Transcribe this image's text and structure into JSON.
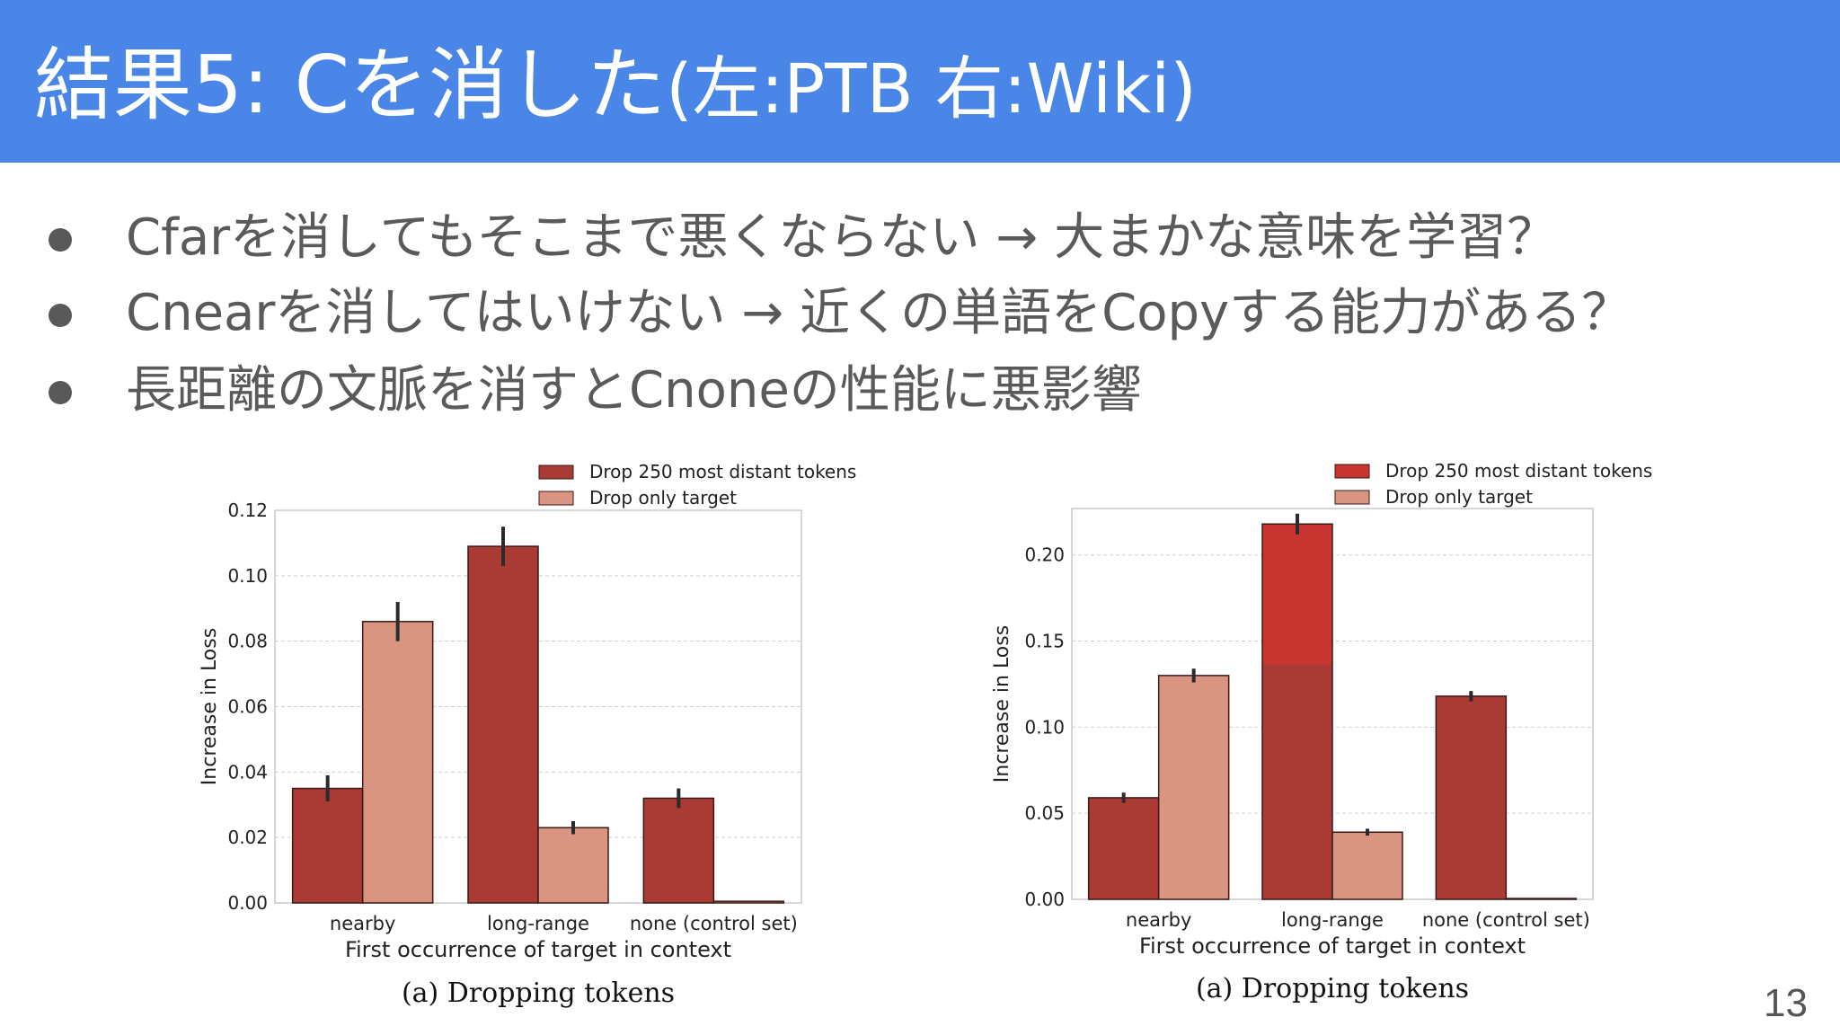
{
  "slide": {
    "title": "結果5: Cを消した",
    "title_sub": "(左:PTB   右:Wiki)",
    "page_number": "13",
    "colors": {
      "header": "#4a86e8",
      "bar_dark": "#a93a34",
      "bar_light": "#d99482",
      "bar_bright": "#c93530"
    }
  },
  "bullets": [
    {
      "text": "Cfarを消してもそこまで悪くならない → 大まかな意味を学習？"
    },
    {
      "text": "Cnearを消してはいけない → 近くの単語をCopyする能力がある？"
    },
    {
      "text": "長距離の文脈を消すとCnoneの性能に悪影響"
    }
  ],
  "chart_data": [
    {
      "type": "bar",
      "categories": [
        "nearby",
        "long-range",
        "none (control set)"
      ],
      "series": [
        {
          "name": "Drop 250 most distant tokens",
          "values": [
            0.035,
            0.109,
            0.032
          ],
          "errors": [
            0.004,
            0.006,
            0.003
          ]
        },
        {
          "name": "Drop only target",
          "values": [
            0.086,
            0.023,
            0.0005
          ],
          "errors": [
            0.006,
            0.002,
            0.0
          ]
        }
      ],
      "xlabel": "First occurrence of target in context",
      "ylabel": "Increase in Loss",
      "ylim": [
        0,
        0.12
      ],
      "yticks": [
        "0.00",
        "0.02",
        "0.04",
        "0.06",
        "0.08",
        "0.10",
        "0.12"
      ],
      "caption": "(a) Dropping tokens",
      "legend": "top-right",
      "grid": true
    },
    {
      "type": "bar",
      "categories": [
        "nearby",
        "long-range",
        "none (control set)"
      ],
      "series": [
        {
          "name": "Drop 250 most distant tokens",
          "values": [
            0.059,
            0.218,
            0.118
          ],
          "errors": [
            0.003,
            0.006,
            0.003
          ]
        },
        {
          "name": "Drop only target",
          "values": [
            0.13,
            0.039,
            0.0005
          ],
          "errors": [
            0.004,
            0.002,
            0.0
          ]
        }
      ],
      "xlabel": "First occurrence of target in context",
      "ylabel": "Increase in Loss",
      "ylim": [
        0,
        0.227
      ],
      "yticks": [
        "0.00",
        "0.05",
        "0.10",
        "0.15",
        "0.20"
      ],
      "caption": "(a) Dropping tokens",
      "legend": "top-right",
      "grid": true
    }
  ]
}
